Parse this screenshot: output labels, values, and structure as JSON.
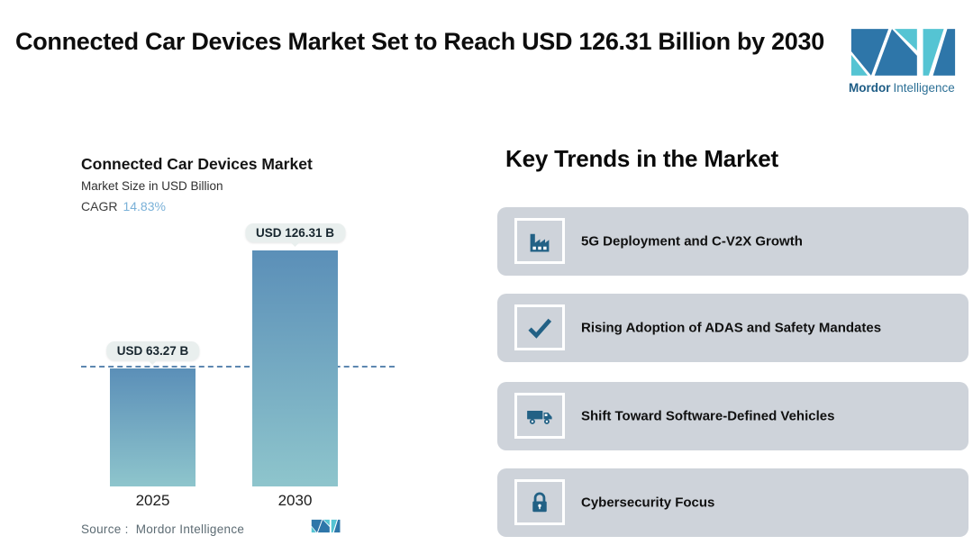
{
  "header": {
    "title": "Connected Car Devices Market Set to Reach USD 126.31 Billion by 2030",
    "brand_bold": "Mordor",
    "brand_regular": "Intelligence"
  },
  "chart": {
    "title": "Connected Car Devices Market",
    "subtitle": "Market Size in USD Billion",
    "cagr_label": "CAGR",
    "cagr_value": "14.83%",
    "source_label": "Source :",
    "source_value": "Mordor Intelligence"
  },
  "chart_data": {
    "type": "bar",
    "title": "Connected Car Devices Market",
    "subtitle": "Market Size in USD Billion",
    "cagr": "14.83%",
    "categories": [
      "2025",
      "2030"
    ],
    "values": [
      63.27,
      126.31
    ],
    "value_labels": [
      "USD 63.27 B",
      "USD 126.31 B"
    ],
    "unit": "USD Billion",
    "ylim": [
      0,
      130
    ],
    "reference_line": 63.27,
    "grid": false,
    "legend": "none",
    "source": "Mordor Intelligence"
  },
  "trends": {
    "heading": "Key Trends in the Market",
    "items": [
      {
        "icon": "factory-icon",
        "label": "5G Deployment and C-V2X Growth"
      },
      {
        "icon": "checkmark-icon",
        "label": "Rising Adoption of ADAS and Safety Mandates"
      },
      {
        "icon": "truck-icon",
        "label": "Shift Toward Software-Defined Vehicles"
      },
      {
        "icon": "lock-icon",
        "label": "Cybersecurity Focus"
      }
    ]
  },
  "colors": {
    "brand_blue": "#2e76a9",
    "brand_teal": "#55c4d3",
    "icon_blue": "#226185",
    "card_bg": "#ced3da",
    "bar_gradient_top": "#5b8fb8",
    "bar_gradient_bottom": "#8ec5cc",
    "dashed_line": "#5d87b0",
    "cagr_value": "#7ab1d8",
    "pill_bg": "#e9efee"
  }
}
